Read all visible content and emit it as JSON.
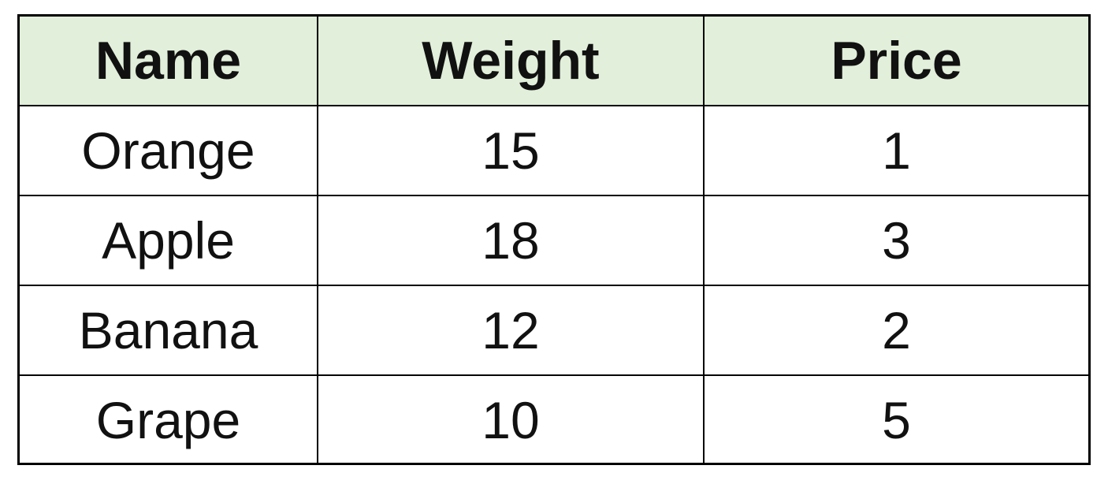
{
  "table": {
    "headers": [
      "Name",
      "Weight",
      "Price"
    ],
    "rows": [
      [
        "Orange",
        "15",
        "1"
      ],
      [
        "Apple",
        "18",
        "3"
      ],
      [
        "Banana",
        "12",
        "2"
      ],
      [
        "Grape",
        "10",
        "5"
      ]
    ]
  },
  "colors": {
    "header_bg": "#e2efda",
    "border": "#000000",
    "text": "#111111"
  }
}
